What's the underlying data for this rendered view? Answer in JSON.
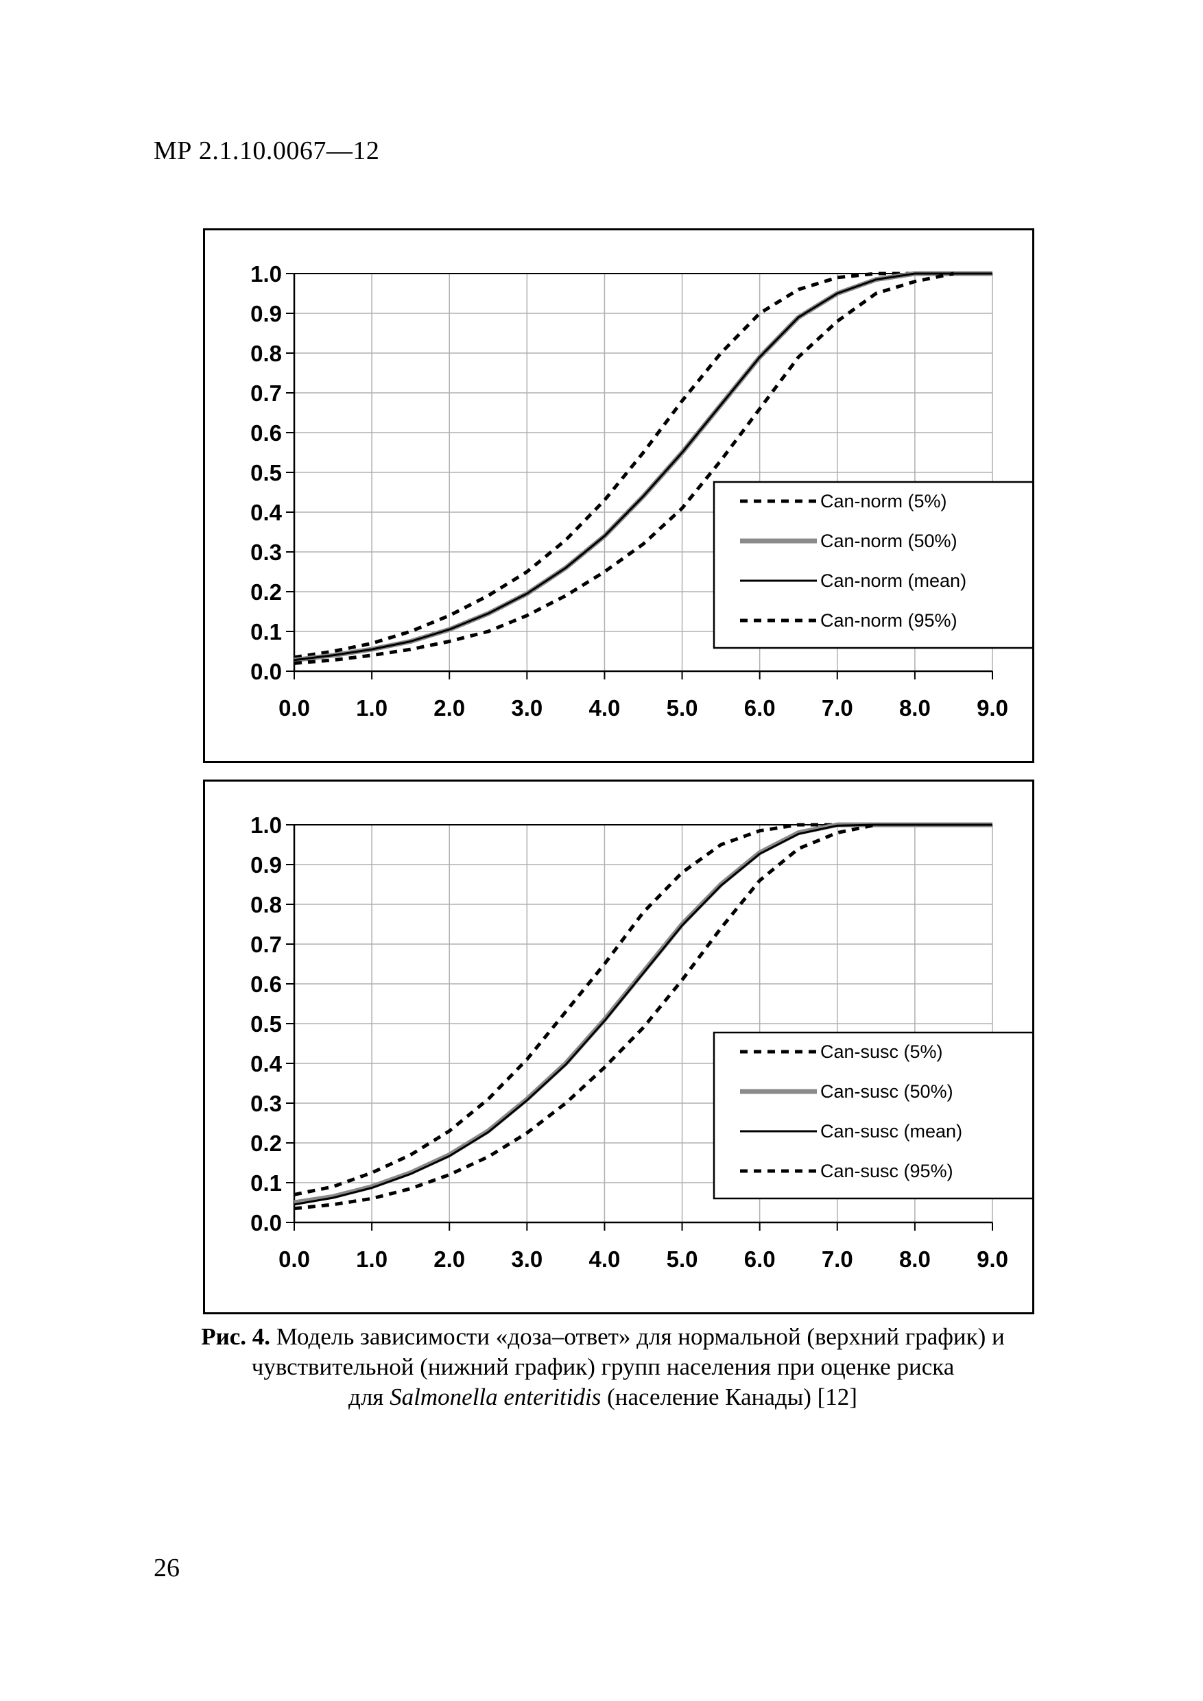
{
  "header": {
    "doc_number": "МР 2.1.10.0067—12"
  },
  "caption": {
    "label": "Рис. 4.",
    "line1": " Модель зависимости «доза–ответ» для нормальной (верхний график) и",
    "line2": "чувствительной (нижний график) групп населения при оценке риска",
    "line3_before": "для ",
    "species": "Salmonella enteritidis",
    "line3_after": " (население Канады) [12]"
  },
  "page_number": "26",
  "colors": {
    "median_line": "#8a8a8a",
    "main_line": "#000000",
    "grid": "#b0b0b0"
  },
  "chart_data": [
    {
      "type": "line",
      "title": "",
      "xlabel": "",
      "ylabel": "",
      "xlim": [
        0,
        9
      ],
      "ylim": [
        0,
        1
      ],
      "x_ticks": [
        "0.0",
        "1.0",
        "2.0",
        "3.0",
        "4.0",
        "5.0",
        "6.0",
        "7.0",
        "8.0",
        "9.0"
      ],
      "y_ticks": [
        "0.0",
        "0.1",
        "0.2",
        "0.3",
        "0.4",
        "0.5",
        "0.6",
        "0.7",
        "0.8",
        "0.9",
        "1.0"
      ],
      "grid": true,
      "legend_position": "right",
      "x": [
        0,
        0.5,
        1,
        1.5,
        2,
        2.5,
        3,
        3.5,
        4,
        4.5,
        5,
        5.5,
        6,
        6.5,
        7,
        7.5,
        8,
        8.5,
        9
      ],
      "series": [
        {
          "name": "Can-norm (5%)",
          "style": "dashed",
          "values": [
            0.035,
            0.05,
            0.07,
            0.1,
            0.14,
            0.19,
            0.25,
            0.33,
            0.43,
            0.55,
            0.68,
            0.8,
            0.9,
            0.96,
            0.99,
            1.0,
            1.0,
            1.0,
            null
          ]
        },
        {
          "name": "Can-norm (50%)",
          "style": "solid-gray",
          "values": [
            0.028,
            0.04,
            0.055,
            0.075,
            0.105,
            0.145,
            0.195,
            0.26,
            0.34,
            0.44,
            0.55,
            0.67,
            0.79,
            0.89,
            0.95,
            0.985,
            1.0,
            1.0,
            1.0
          ]
        },
        {
          "name": "Can-norm (mean)",
          "style": "solid",
          "values": [
            0.028,
            0.04,
            0.055,
            0.075,
            0.105,
            0.145,
            0.195,
            0.26,
            0.34,
            0.44,
            0.55,
            0.67,
            0.79,
            0.89,
            0.95,
            0.985,
            1.0,
            1.0,
            1.0
          ]
        },
        {
          "name": "Can-norm (95%)",
          "style": "dashed",
          "values": [
            0.02,
            0.028,
            0.04,
            0.055,
            0.075,
            0.1,
            0.14,
            0.19,
            0.25,
            0.32,
            0.41,
            0.53,
            0.66,
            0.79,
            0.88,
            0.95,
            0.98,
            1.0,
            null
          ]
        }
      ]
    },
    {
      "type": "line",
      "title": "",
      "xlabel": "",
      "ylabel": "",
      "xlim": [
        0,
        9
      ],
      "ylim": [
        0,
        1
      ],
      "x_ticks": [
        "0.0",
        "1.0",
        "2.0",
        "3.0",
        "4.0",
        "5.0",
        "6.0",
        "7.0",
        "8.0",
        "9.0"
      ],
      "y_ticks": [
        "0.0",
        "0.1",
        "0.2",
        "0.3",
        "0.4",
        "0.5",
        "0.6",
        "0.7",
        "0.8",
        "0.9",
        "1.0"
      ],
      "grid": true,
      "legend_position": "right",
      "x": [
        0,
        0.5,
        1,
        1.5,
        2,
        2.5,
        3,
        3.5,
        4,
        4.5,
        5,
        5.5,
        6,
        6.5,
        7,
        7.5,
        8,
        8.5,
        9
      ],
      "series": [
        {
          "name": "Can-susc (5%)",
          "style": "dashed",
          "values": [
            0.07,
            0.09,
            0.125,
            0.17,
            0.23,
            0.31,
            0.41,
            0.53,
            0.65,
            0.78,
            0.88,
            0.95,
            0.985,
            1.0,
            1.0,
            null,
            null,
            null,
            null
          ]
        },
        {
          "name": "Can-susc (50%)",
          "style": "solid-gray",
          "values": [
            0.05,
            0.065,
            0.09,
            0.125,
            0.17,
            0.23,
            0.31,
            0.4,
            0.51,
            0.63,
            0.75,
            0.85,
            0.93,
            0.98,
            1.0,
            1.0,
            1.0,
            1.0,
            1.0
          ]
        },
        {
          "name": "Can-susc (mean)",
          "style": "solid",
          "values": [
            0.045,
            0.062,
            0.087,
            0.122,
            0.167,
            0.227,
            0.307,
            0.397,
            0.507,
            0.627,
            0.747,
            0.847,
            0.927,
            0.977,
            0.998,
            1.0,
            1.0,
            1.0,
            1.0
          ]
        },
        {
          "name": "Can-susc (95%)",
          "style": "dashed",
          "values": [
            0.035,
            0.045,
            0.06,
            0.085,
            0.12,
            0.165,
            0.225,
            0.3,
            0.39,
            0.49,
            0.61,
            0.74,
            0.86,
            0.94,
            0.98,
            1.0,
            null,
            null,
            null
          ]
        }
      ]
    }
  ]
}
